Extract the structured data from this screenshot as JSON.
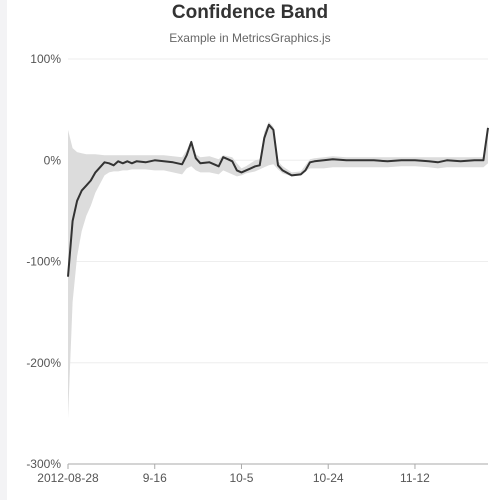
{
  "chart_data": {
    "type": "line",
    "title": "Confidence Band",
    "subtitle": "Example in MetricsGraphics.js",
    "ylim": [
      -300,
      100
    ],
    "y_ticks": [
      "100%",
      "0%",
      "-100%",
      "-200%",
      "-300%"
    ],
    "x_ticks": [
      "2012-08-28",
      "9-16",
      "10-5",
      "10-24",
      "11-12"
    ],
    "x_range": [
      "2012-08-28",
      "2012-11-28"
    ],
    "grid": true,
    "colors": {
      "line": "#333333",
      "band": "#dcdcdc",
      "grid": "#eeeeee",
      "axis": "#aaaaaa"
    },
    "series": [
      {
        "x": [
          "2012-08-28",
          "2012-08-29",
          "2012-08-30",
          "2012-08-31",
          "2012-09-01",
          "2012-09-02",
          "2012-09-03",
          "2012-09-05",
          "2012-09-06",
          "2012-09-07",
          "2012-09-08",
          "2012-09-09",
          "2012-09-10",
          "2012-09-11",
          "2012-09-12",
          "2012-09-14",
          "2012-09-16",
          "2012-09-18",
          "2012-09-20",
          "2012-09-22",
          "2012-09-23",
          "2012-09-24",
          "2012-09-25",
          "2012-09-26",
          "2012-09-28",
          "2012-09-30",
          "2012-10-01",
          "2012-10-02",
          "2012-10-03",
          "2012-10-04",
          "2012-10-05",
          "2012-10-06",
          "2012-10-07",
          "2012-10-08",
          "2012-10-09",
          "2012-10-10",
          "2012-10-11",
          "2012-10-12",
          "2012-10-13",
          "2012-10-14",
          "2012-10-16",
          "2012-10-18",
          "2012-10-19",
          "2012-10-20",
          "2012-10-21",
          "2012-10-23",
          "2012-10-25",
          "2012-10-28",
          "2012-10-31",
          "2012-11-03",
          "2012-11-06",
          "2012-11-09",
          "2012-11-12",
          "2012-11-15",
          "2012-11-17",
          "2012-11-19",
          "2012-11-22",
          "2012-11-25",
          "2012-11-27",
          "2012-11-28"
        ],
        "values": [
          -115,
          -60,
          -40,
          -30,
          -25,
          -20,
          -12,
          -2,
          -3,
          -5,
          -1,
          -3,
          -1,
          -3,
          -1,
          -2,
          0,
          -1,
          -2,
          -4,
          5,
          18,
          2,
          -3,
          -2,
          -6,
          3,
          1,
          -1,
          -10,
          -12,
          -10,
          -8,
          -6,
          -5,
          22,
          35,
          30,
          -5,
          -10,
          -15,
          -14,
          -10,
          -2,
          -1,
          0,
          1,
          0,
          0,
          0,
          -1,
          0,
          0,
          -1,
          -2,
          0,
          -1,
          0,
          0,
          32
        ],
        "lower": [
          -255,
          -140,
          -95,
          -70,
          -55,
          -45,
          -32,
          -15,
          -12,
          -11,
          -11,
          -10,
          -10,
          -9,
          -9,
          -9,
          -10,
          -10,
          -12,
          -14,
          -8,
          -6,
          -10,
          -12,
          -12,
          -14,
          -10,
          -12,
          -14,
          -16,
          -15,
          -13,
          -12,
          -11,
          -9,
          -7,
          -5,
          -4,
          -9,
          -13,
          -16,
          -15,
          -11,
          -8,
          -8,
          -8,
          -7,
          -7,
          -7,
          -7,
          -7,
          -6,
          -6,
          -7,
          -8,
          -7,
          -7,
          -7,
          -7,
          -3
        ],
        "upper": [
          30,
          12,
          8,
          7,
          6,
          6,
          6,
          5,
          5,
          5,
          5,
          5,
          5,
          5,
          5,
          5,
          5,
          5,
          4,
          3,
          10,
          20,
          6,
          3,
          4,
          1,
          5,
          4,
          3,
          -3,
          -8,
          -6,
          -3,
          0,
          1,
          28,
          38,
          33,
          -1,
          -6,
          -12,
          -11,
          -5,
          1,
          2,
          3,
          4,
          3,
          3,
          3,
          3,
          3,
          3,
          3,
          3,
          3,
          3,
          3,
          3,
          35
        ]
      }
    ]
  }
}
